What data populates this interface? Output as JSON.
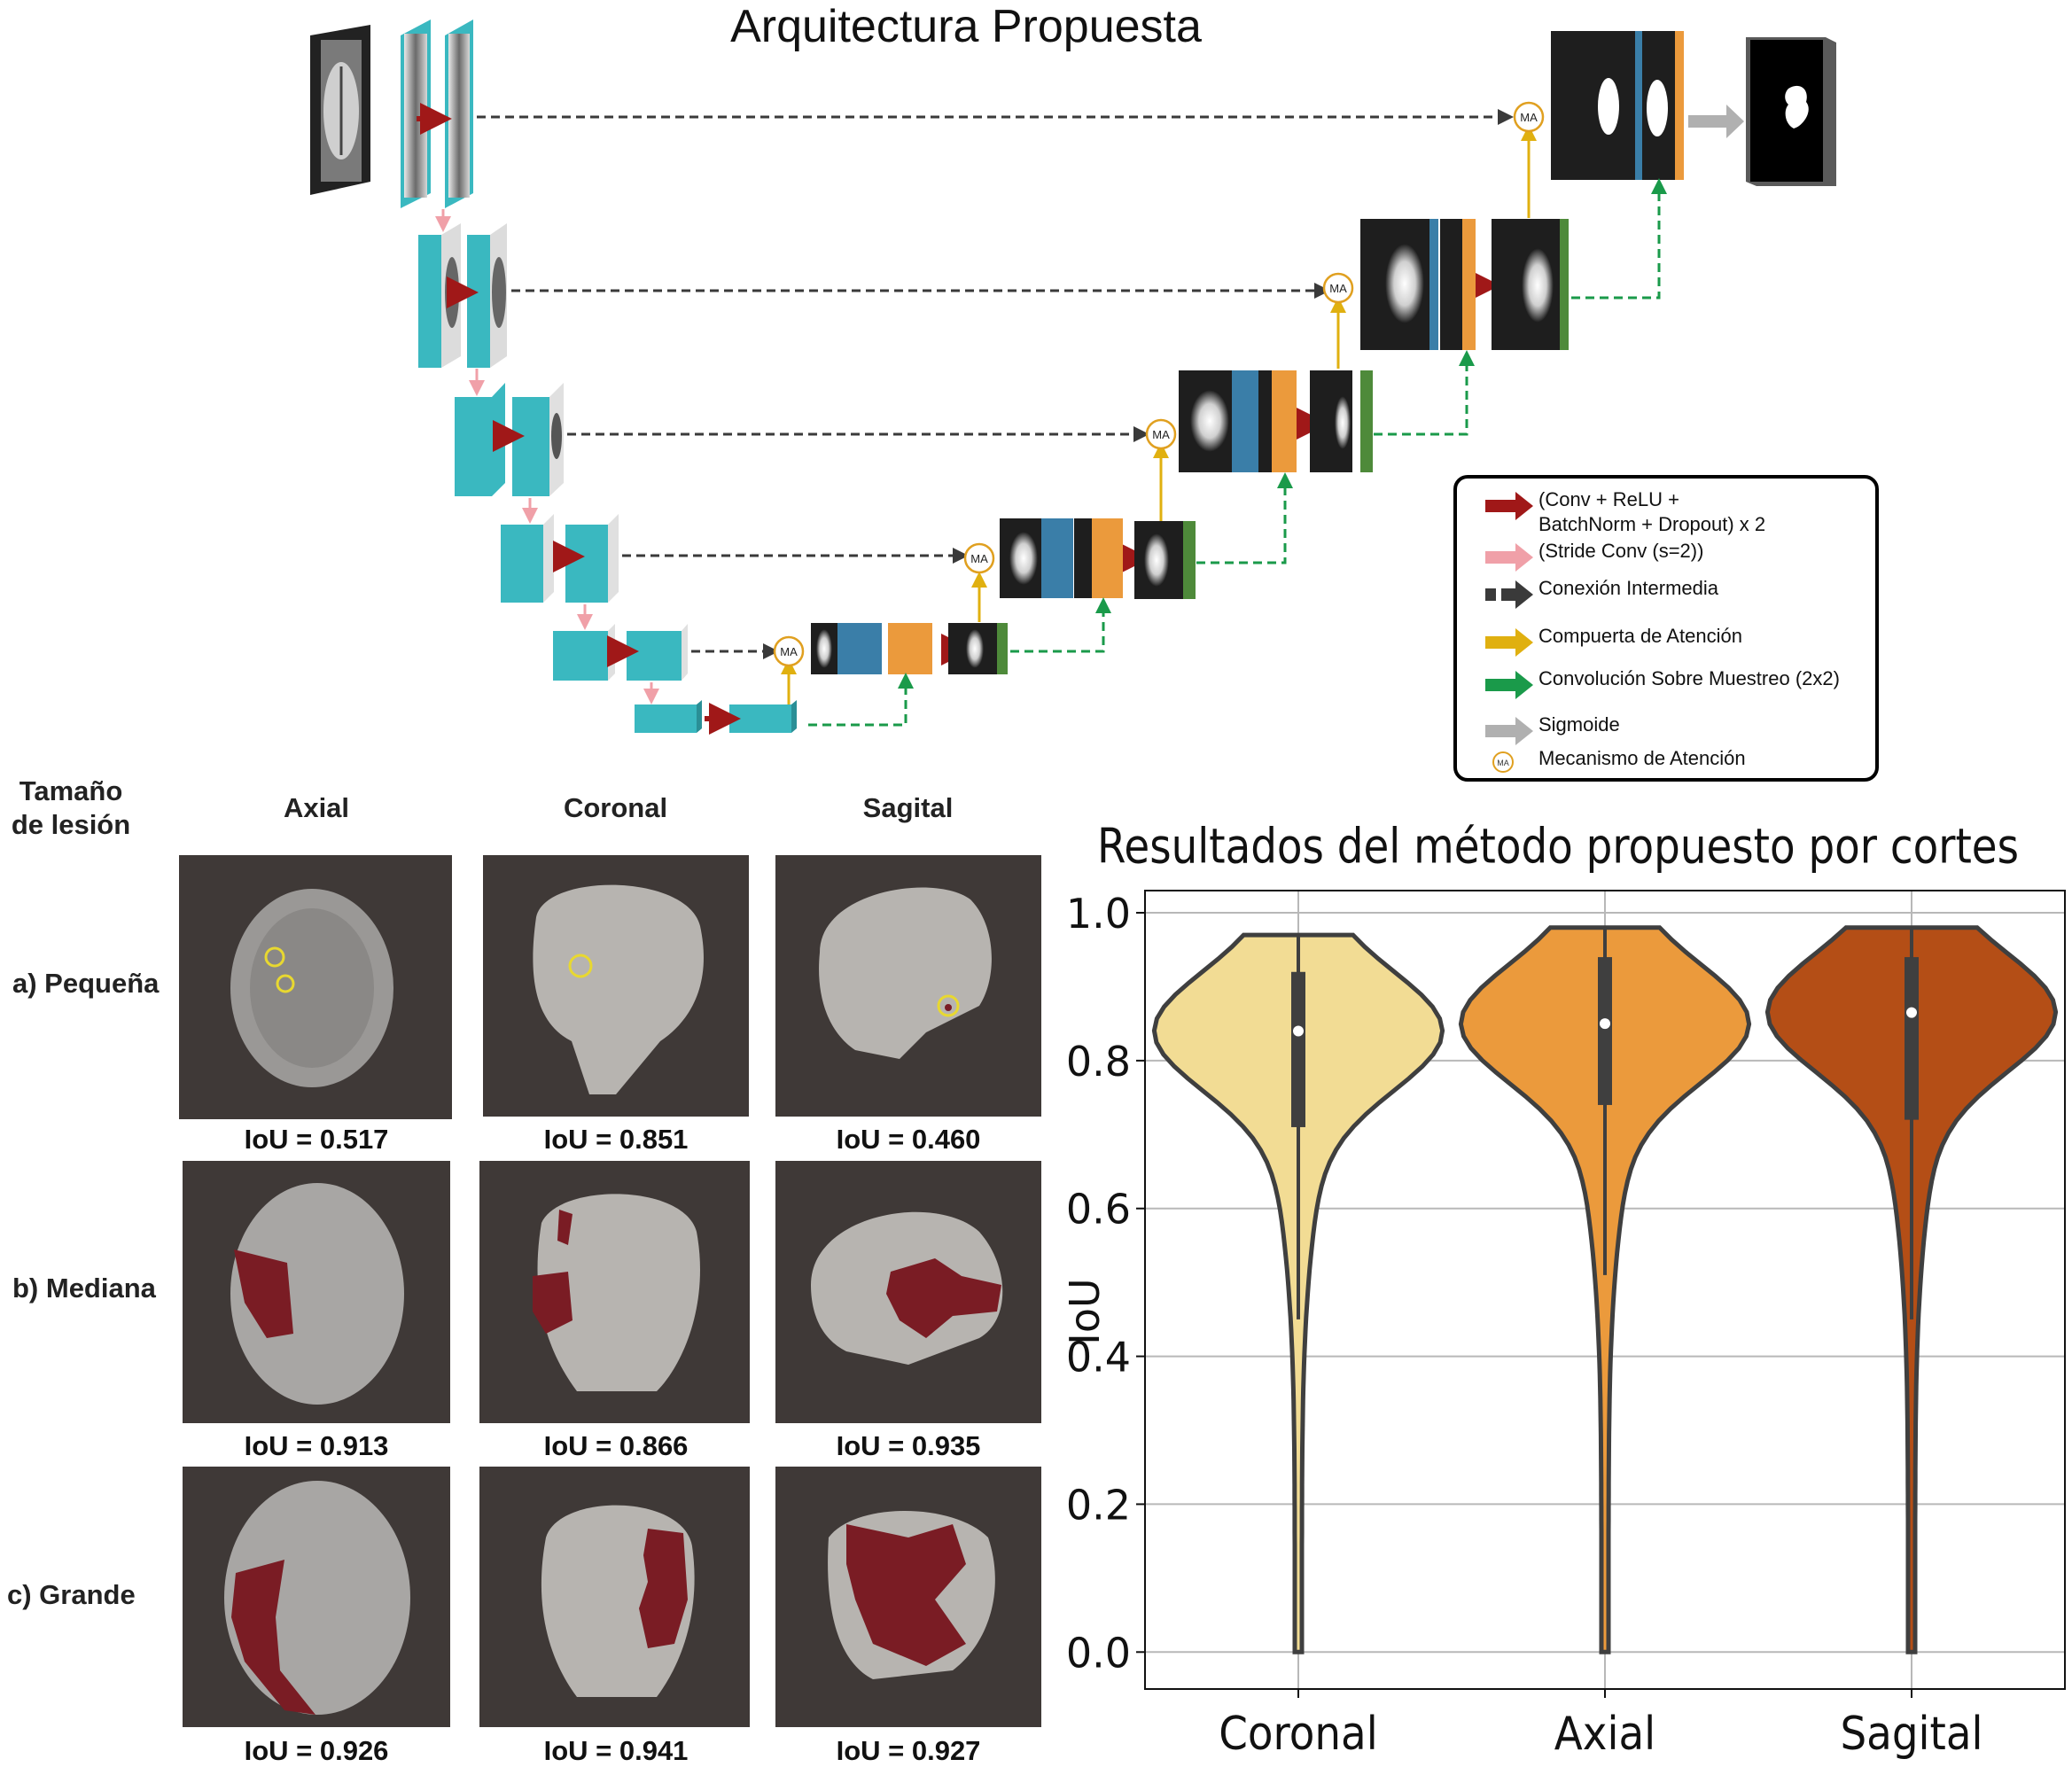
{
  "architecture": {
    "title": "Arquitectura Propuesta",
    "attention_label": "MA",
    "legend": [
      {
        "icon": "red-arrow-icon",
        "color": "#a01818",
        "text": "(Conv + ReLU +\nBatchNorm + Dropout) x 2"
      },
      {
        "icon": "pink-arrow-icon",
        "color": "#f0a0a8",
        "text": "(Stride Conv (s=2))"
      },
      {
        "icon": "dark-dashed-arrow-icon",
        "color": "#3a3a3a",
        "text": "Conexión Intermedia"
      },
      {
        "icon": "yellow-arrow-icon",
        "color": "#e0b010",
        "text": "Compuerta de Atención"
      },
      {
        "icon": "green-arrow-icon",
        "color": "#1a9a4a",
        "text": "Convolución Sobre Muestreo (2x2)"
      },
      {
        "icon": "gray-arrow-icon",
        "color": "#b0b0b0",
        "text": "Sigmoide"
      },
      {
        "icon": "ma-circle-icon",
        "color": "#e0a020",
        "text": "Mecanismo de Atención"
      }
    ]
  },
  "results_grid": {
    "row_header": "Tamaño\nde lesión",
    "columns": [
      "Axial",
      "Coronal",
      "Sagital"
    ],
    "rows": [
      {
        "label": "a) Pequeña",
        "iou": [
          "IoU = 0.517",
          "IoU = 0.851",
          "IoU = 0.460"
        ]
      },
      {
        "label": "b) Mediana",
        "iou": [
          "IoU = 0.913",
          "IoU = 0.866",
          "IoU = 0.935"
        ]
      },
      {
        "label": "c) Grande",
        "iou": [
          "IoU = 0.926",
          "IoU = 0.941",
          "IoU = 0.927"
        ]
      }
    ],
    "colors": {
      "panel_bg": "#3f3937",
      "lesion": "#7a1c24",
      "marker": "#e8d830"
    }
  },
  "chart_data": {
    "type": "violin",
    "title": "Resultados del método propuesto por cortes",
    "ylabel": "IoU",
    "xlabel": "",
    "ylim": [
      -0.05,
      1.03
    ],
    "yticks": [
      "0.0",
      "0.2",
      "0.4",
      "0.6",
      "0.8",
      "1.0"
    ],
    "grid": true,
    "categories": [
      "Coronal",
      "Axial",
      "Sagital"
    ],
    "colors": [
      "#f2dc94",
      "#eb9a3c",
      "#b44e16"
    ],
    "series": [
      {
        "median": 0.84,
        "q1": 0.71,
        "q3": 0.92,
        "whisker_low": 0.45,
        "whisker_high": 0.97,
        "min": 0.0,
        "max": 0.97
      },
      {
        "median": 0.85,
        "q1": 0.74,
        "q3": 0.94,
        "whisker_low": 0.51,
        "whisker_high": 0.98,
        "min": 0.0,
        "max": 0.98
      },
      {
        "median": 0.865,
        "q1": 0.72,
        "q3": 0.94,
        "whisker_low": 0.45,
        "whisker_high": 0.98,
        "min": 0.0,
        "max": 0.98
      }
    ]
  }
}
